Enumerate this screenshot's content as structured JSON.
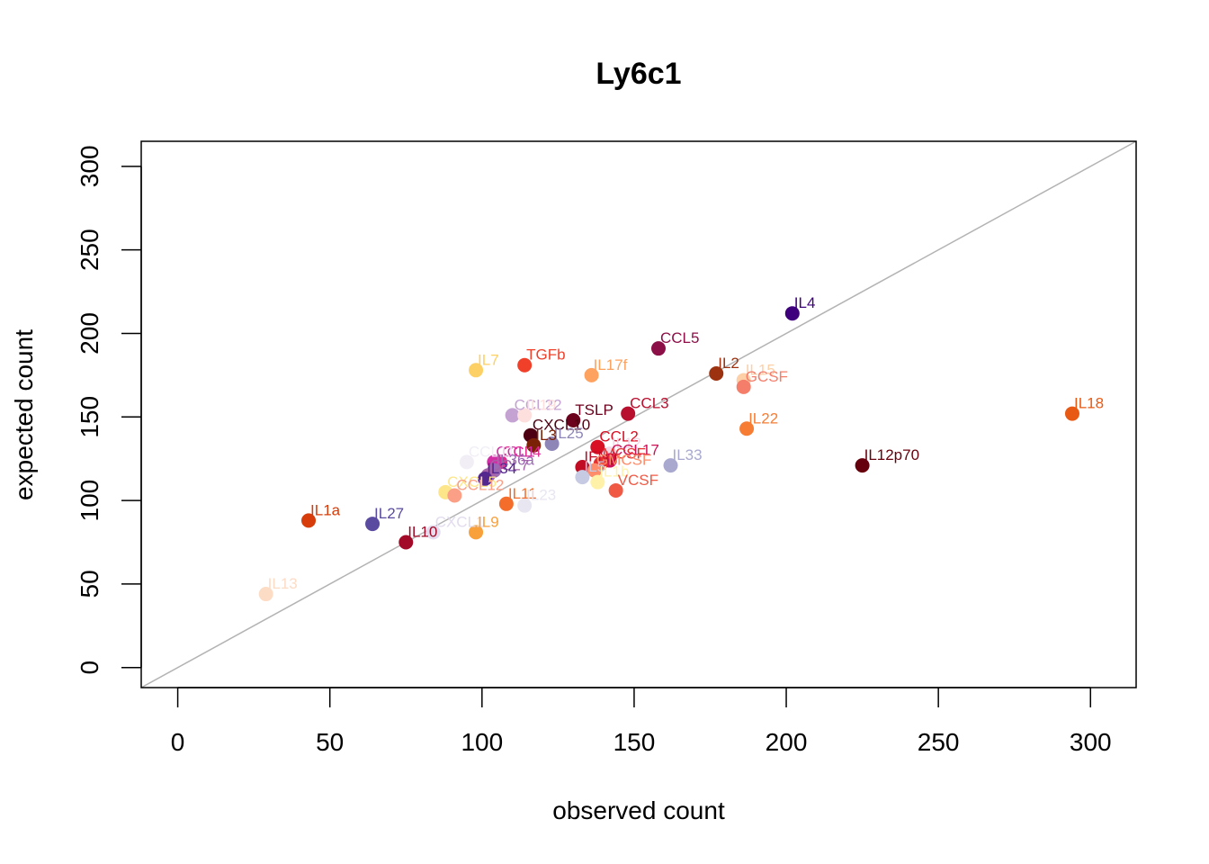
{
  "chart_data": {
    "type": "scatter",
    "title": "Ly6c1",
    "xlabel": "observed count",
    "ylabel": "expected count",
    "xlim": [
      -12,
      315
    ],
    "ylim": [
      -12,
      315
    ],
    "xticks": [
      0,
      50,
      100,
      150,
      200,
      250,
      300
    ],
    "yticks": [
      0,
      50,
      100,
      150,
      200,
      250,
      300
    ],
    "reference_line": "y = x",
    "reference_line_color": "#b3b3b3",
    "points": [
      {
        "label": "IL4",
        "x": 202,
        "y": 212,
        "color": "#3f007d"
      },
      {
        "label": "CCL5",
        "x": 158,
        "y": 191,
        "color": "#8c1047"
      },
      {
        "label": "TGFb",
        "x": 114,
        "y": 181,
        "color": "#f0402a"
      },
      {
        "label": "IL7",
        "x": 98,
        "y": 178,
        "color": "#fdd065"
      },
      {
        "label": "IL17f",
        "x": 136,
        "y": 175,
        "color": "#fda25f"
      },
      {
        "label": "IL2",
        "x": 177,
        "y": 176,
        "color": "#9c3210"
      },
      {
        "label": "IL15",
        "x": 186,
        "y": 172,
        "color": "#fdd0a8"
      },
      {
        "label": "GCSF",
        "x": 186,
        "y": 168,
        "color": "#f47e6a"
      },
      {
        "label": "IL18",
        "x": 294,
        "y": 152,
        "color": "#e85a14"
      },
      {
        "label": "CCL3",
        "x": 148,
        "y": 152,
        "color": "#b80f2e"
      },
      {
        "label": "CCL22",
        "x": 110,
        "y": 151,
        "color": "#c4a3d3"
      },
      {
        "label": "IL19",
        "x": 114,
        "y": 151,
        "color": "#fde0dd"
      },
      {
        "label": "TSLP",
        "x": 130,
        "y": 148,
        "color": "#6b011d"
      },
      {
        "label": "IL22",
        "x": 187,
        "y": 143,
        "color": "#f77d34"
      },
      {
        "label": "CXCL10",
        "x": 116,
        "y": 139,
        "color": "#4c0012"
      },
      {
        "label": "IL25",
        "x": 123,
        "y": 134,
        "color": "#8f86b8"
      },
      {
        "label": "IL3",
        "x": 117,
        "y": 133,
        "color": "#7a2106"
      },
      {
        "label": "CCL2",
        "x": 138,
        "y": 132,
        "color": "#d90f24"
      },
      {
        "label": "IL12",
        "x": 142,
        "y": 128,
        "color": "#f3d8e6"
      },
      {
        "label": "CCL17",
        "x": 142,
        "y": 124,
        "color": "#ce1256"
      },
      {
        "label": "IL12p70",
        "x": 225,
        "y": 121,
        "color": "#67000d"
      },
      {
        "label": "IL33",
        "x": 162,
        "y": 121,
        "color": "#a9a9d0"
      },
      {
        "label": "CCL4",
        "x": 106,
        "y": 123,
        "color": "#e32a90"
      },
      {
        "label": "CCL1",
        "x": 104,
        "y": 123,
        "color": "#d12fa3"
      },
      {
        "label": "CCL11",
        "x": 95,
        "y": 123,
        "color": "#f1eef6"
      },
      {
        "label": "IFNg",
        "x": 133,
        "y": 120,
        "color": "#c00d24"
      },
      {
        "label": "MCSF",
        "x": 139,
        "y": 122,
        "color": "#e62e2e"
      },
      {
        "label": "GMCSF",
        "x": 137,
        "y": 118,
        "color": "#ff8c6a"
      },
      {
        "label": "IL36a",
        "x": 104,
        "y": 118,
        "color": "#9b6ab3"
      },
      {
        "label": "IL5",
        "x": 133,
        "y": 114,
        "color": "#c6cbe3"
      },
      {
        "label": "CCL7",
        "x": 102,
        "y": 115,
        "color": "#a463a8"
      },
      {
        "label": "IL34",
        "x": 101,
        "y": 113,
        "color": "#54278f"
      },
      {
        "label": "IL1b",
        "x": 138,
        "y": 111,
        "color": "#fff2a8"
      },
      {
        "label": "VCSF",
        "x": 144,
        "y": 106,
        "color": "#f05a45"
      },
      {
        "label": "CXCL5",
        "x": 88,
        "y": 105,
        "color": "#fde68a"
      },
      {
        "label": "CCL12",
        "x": 91,
        "y": 103,
        "color": "#fb9f86"
      },
      {
        "label": "IL11",
        "x": 108,
        "y": 98,
        "color": "#f46d2a"
      },
      {
        "label": "IL23",
        "x": 114,
        "y": 97,
        "color": "#e8e6f0"
      },
      {
        "label": "IL1a",
        "x": 43,
        "y": 88,
        "color": "#d63d0a"
      },
      {
        "label": "IL27",
        "x": 64,
        "y": 86,
        "color": "#5a4ba0"
      },
      {
        "label": "CXCL1",
        "x": 84,
        "y": 81,
        "color": "#e2dcee"
      },
      {
        "label": "IL9",
        "x": 98,
        "y": 81,
        "color": "#f8a03a"
      },
      {
        "label": "IL10",
        "x": 75,
        "y": 75,
        "color": "#a30a27"
      },
      {
        "label": "IL13",
        "x": 29,
        "y": 44,
        "color": "#fddcc6"
      }
    ]
  }
}
